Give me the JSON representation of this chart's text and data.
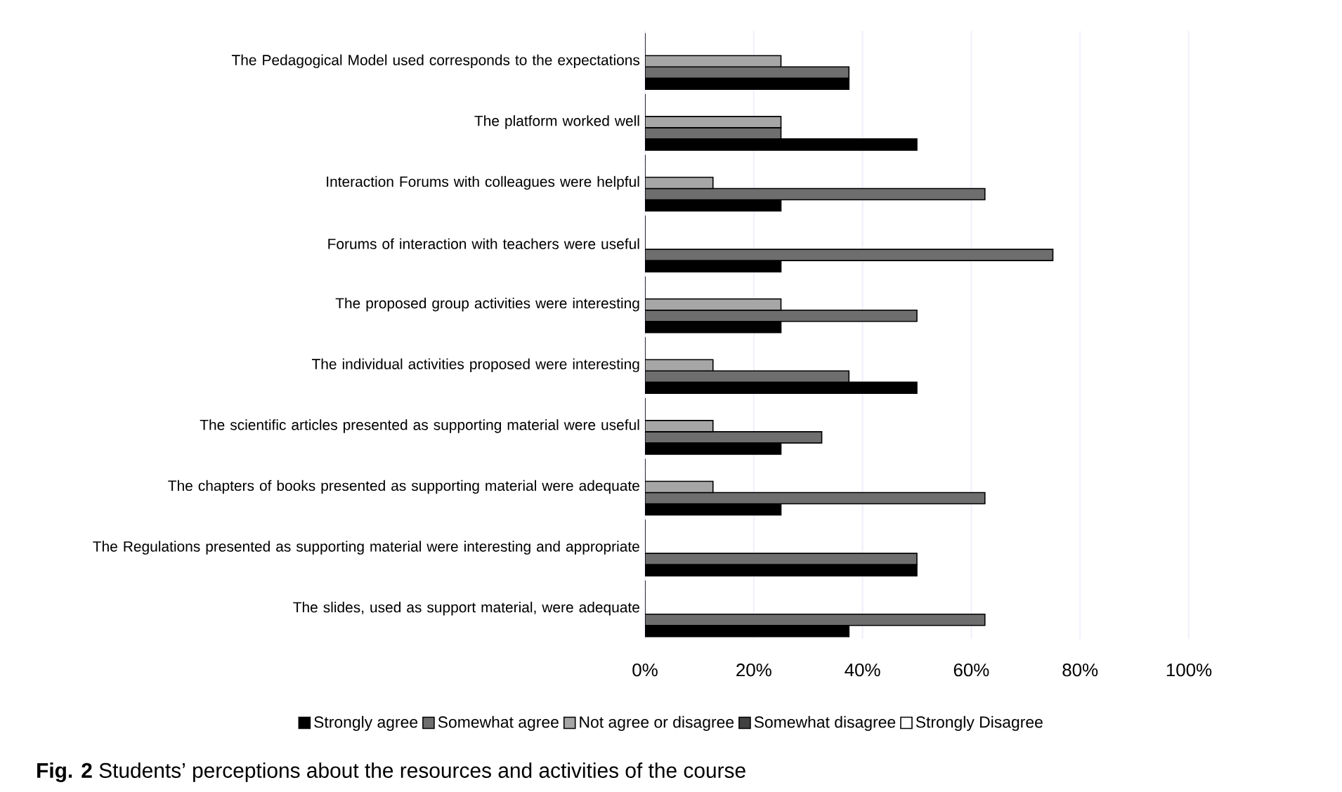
{
  "chart_data": {
    "type": "bar",
    "orientation": "horizontal",
    "categories": [
      "The Pedagogical Model used corresponds to the expectations",
      "The platform worked well",
      "Interaction Forums with colleagues were helpful",
      "Forums of interaction with teachers were useful",
      "The proposed group activities were interesting",
      "The individual activities proposed were interesting",
      "The scientific articles presented as supporting material were useful",
      "The chapters of books presented as supporting material were adequate",
      "The Regulations presented as supporting material were interesting and appropriate",
      "The slides, used as support material, were adequate"
    ],
    "series": [
      {
        "name": "Strongly agree",
        "color": "#000000",
        "values": [
          37.5,
          50,
          25,
          25,
          25,
          50,
          25,
          25,
          50,
          37.5
        ]
      },
      {
        "name": "Somewhat agree",
        "color": "#6e6e6e",
        "values": [
          37.5,
          25,
          62.5,
          75,
          50,
          37.5,
          32.5,
          62.5,
          50,
          62.5
        ]
      },
      {
        "name": "Not agree or disagree",
        "color": "#a6a6a6",
        "values": [
          25,
          25,
          12.5,
          0,
          25,
          12.5,
          12.5,
          12.5,
          0,
          0
        ]
      },
      {
        "name": "Somewhat disagree",
        "color": "#404040",
        "values": [
          0,
          0,
          0,
          0,
          0,
          0,
          0,
          0,
          0,
          0
        ]
      },
      {
        "name": "Strongly Disagree",
        "color": "#ffffff",
        "values": [
          0,
          0,
          0,
          0,
          0,
          0,
          0,
          0,
          0,
          0
        ]
      }
    ],
    "xlim": [
      0,
      100
    ],
    "xticks": [
      {
        "value": 0,
        "label": "0%"
      },
      {
        "value": 20,
        "label": "20%"
      },
      {
        "value": 40,
        "label": "40%"
      },
      {
        "value": 60,
        "label": "60%"
      },
      {
        "value": 80,
        "label": "80%"
      },
      {
        "value": 100,
        "label": "100%"
      }
    ],
    "grid": "x",
    "legend": "bottom",
    "annotations": [
      "**Fig. 2** Students’ perceptions about the resources and activities of the course"
    ]
  }
}
